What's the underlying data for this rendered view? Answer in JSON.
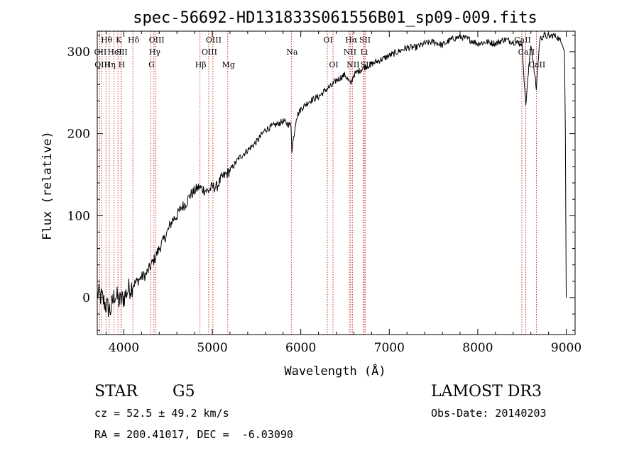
{
  "chart_data": {
    "type": "line",
    "title": "spec-56692-HD131833S061556B01_sp09-009.fits",
    "xlabel": "Wavelength (Å)",
    "ylabel": "Flux (relative)",
    "xlim": [
      3700,
      9100
    ],
    "ylim": [
      -45,
      325
    ],
    "xticks": [
      4000,
      5000,
      6000,
      7000,
      8000,
      9000
    ],
    "yticks": [
      0,
      100,
      200,
      300
    ],
    "series": [
      {
        "name": "spectrum",
        "x": [
          3700,
          3750,
          3800,
          3850,
          3900,
          3950,
          4000,
          4050,
          4100,
          4150,
          4200,
          4250,
          4300,
          4350,
          4400,
          4450,
          4500,
          4550,
          4600,
          4650,
          4700,
          4750,
          4800,
          4850,
          4900,
          4950,
          5000,
          5050,
          5100,
          5150,
          5200,
          5300,
          5400,
          5500,
          5600,
          5700,
          5800,
          5890,
          5900,
          5950,
          6000,
          6100,
          6200,
          6300,
          6350,
          6400,
          6500,
          6563,
          6600,
          6700,
          6800,
          6900,
          7000,
          7100,
          7200,
          7300,
          7400,
          7500,
          7600,
          7700,
          7800,
          7900,
          8000,
          8100,
          8200,
          8300,
          8400,
          8500,
          8542,
          8600,
          8662,
          8700,
          8750,
          8800,
          8850,
          8900,
          8950,
          8980,
          8990,
          9000
        ],
        "y": [
          5,
          0,
          -10,
          -15,
          5,
          -5,
          0,
          10,
          15,
          20,
          25,
          28,
          38,
          48,
          60,
          70,
          82,
          95,
          100,
          110,
          115,
          125,
          130,
          135,
          132,
          130,
          135,
          135,
          145,
          150,
          155,
          170,
          180,
          190,
          205,
          210,
          215,
          210,
          180,
          220,
          230,
          240,
          245,
          255,
          258,
          265,
          272,
          260,
          272,
          280,
          285,
          290,
          295,
          300,
          305,
          305,
          310,
          312,
          308,
          315,
          318,
          315,
          310,
          312,
          310,
          315,
          312,
          310,
          235,
          310,
          255,
          315,
          320,
          318,
          320,
          318,
          310,
          300,
          200,
          0
        ]
      }
    ],
    "lines": [
      {
        "name": "Hθ",
        "wave": 3798,
        "row": 0
      },
      {
        "name": "OII",
        "wave": 3727,
        "row": 1
      },
      {
        "name": "OIII",
        "wave": 3750,
        "row": 2
      },
      {
        "name": "Hη",
        "wave": 3835,
        "row": 2
      },
      {
        "name": "HeI",
        "wave": 3889,
        "row": 1
      },
      {
        "name": "K",
        "wave": 3934,
        "row": 0
      },
      {
        "name": "SII",
        "wave": 3970,
        "row": 1
      },
      {
        "name": "H",
        "wave": 3968,
        "row": 2
      },
      {
        "name": "Hδ",
        "wave": 4102,
        "row": 0
      },
      {
        "name": "OIII",
        "wave": 4363,
        "row": 0
      },
      {
        "name": "Hγ",
        "wave": 4341,
        "row": 1
      },
      {
        "name": "G",
        "wave": 4305,
        "row": 2
      },
      {
        "name": "Hβ",
        "wave": 4861,
        "row": 2
      },
      {
        "name": "OIII",
        "wave": 4959,
        "row": 1
      },
      {
        "name": "OIII",
        "wave": 5007,
        "row": 0
      },
      {
        "name": "Mg",
        "wave": 5175,
        "row": 2
      },
      {
        "name": "Na",
        "wave": 5893,
        "row": 1
      },
      {
        "name": "OI",
        "wave": 6300,
        "row": 0
      },
      {
        "name": "OI",
        "wave": 6364,
        "row": 2
      },
      {
        "name": "Hα",
        "wave": 6563,
        "row": 0
      },
      {
        "name": "NII",
        "wave": 6548,
        "row": 1
      },
      {
        "name": "NII",
        "wave": 6583,
        "row": 2
      },
      {
        "name": "SII",
        "wave": 6717,
        "row": 0
      },
      {
        "name": "Li",
        "wave": 6708,
        "row": 1
      },
      {
        "name": "SII",
        "wave": 6731,
        "row": 2
      },
      {
        "name": "CaII",
        "wave": 8498,
        "row": 0
      },
      {
        "name": "CaII",
        "wave": 8542,
        "row": 1
      },
      {
        "name": "CaII",
        "wave": 8662,
        "row": 2
      }
    ]
  },
  "info": {
    "class": "STAR",
    "subclass": "G5",
    "survey": "LAMOST DR3",
    "cz": "cz = 52.5 ± 49.2 km/s",
    "obs_date": "Obs-Date: 20140203",
    "radec": "RA = 200.41017, DEC =  -6.03090"
  }
}
